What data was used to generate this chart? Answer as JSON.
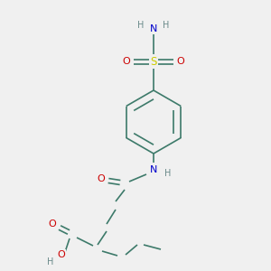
{
  "bg_color": "#f0f0f0",
  "atom_colors": {
    "C": "#3d7a6a",
    "N": "#0000cc",
    "O": "#cc0000",
    "S": "#cccc00",
    "H": "#6a8a8a"
  },
  "bond_color": "#3d7a6a",
  "figsize": [
    3.0,
    3.0
  ],
  "dpi": 100
}
